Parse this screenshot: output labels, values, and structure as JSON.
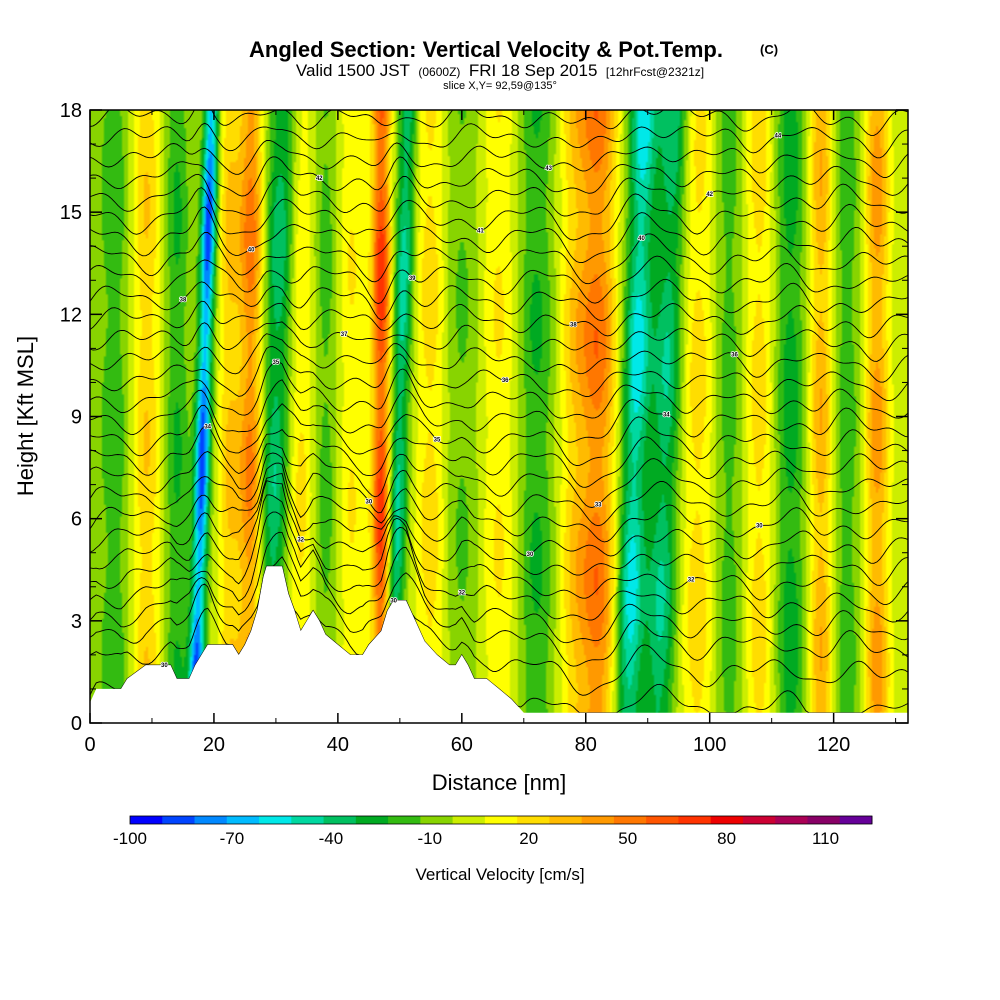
{
  "chart_data": {
    "type": "heatmap",
    "title": "Angled Section: Vertical Velocity & Pot.Temp.",
    "title_units": "(C)",
    "subtitle": {
      "valid_label": "Valid 1500 JST",
      "utc_time": "(0600Z)",
      "date_label": "FRI 18 Sep 2015",
      "forecast": "[12hrFcst@2321z]"
    },
    "slice_label": "slice X,Y= 92,59@135°",
    "xlabel": "Distance [nm]",
    "ylabel": "Height [Kft MSL]",
    "xlim": [
      0,
      132
    ],
    "ylim": [
      0,
      18
    ],
    "x_ticks": [
      "0",
      "20",
      "40",
      "60",
      "80",
      "100",
      "120"
    ],
    "y_ticks": [
      "0",
      "3",
      "6",
      "9",
      "12",
      "15",
      "18"
    ],
    "x_tick_values": [
      0,
      20,
      40,
      60,
      80,
      100,
      120
    ],
    "y_tick_values": [
      0,
      3,
      6,
      9,
      12,
      15,
      18
    ],
    "colorbar": {
      "label": "Vertical Velocity [cm/s]",
      "tick_labels": [
        "-100",
        "-70",
        "-40",
        "-10",
        "20",
        "50",
        "80",
        "110"
      ],
      "tick_values": [
        -100,
        -70,
        -40,
        -10,
        20,
        50,
        80,
        110
      ],
      "range": [
        -100,
        125
      ],
      "colors": [
        "#0000ff",
        "#0044ff",
        "#0088ff",
        "#00bbff",
        "#00e8e8",
        "#00d8a0",
        "#00c060",
        "#00aa22",
        "#33bb11",
        "#88d400",
        "#ccee00",
        "#ffff00",
        "#ffdd00",
        "#ffbb00",
        "#ff9900",
        "#ff7700",
        "#ff5500",
        "#ff3300",
        "#ee0000",
        "#cc0033",
        "#aa0055",
        "#880066",
        "#660099"
      ]
    },
    "velocity_features": [
      {
        "x": 4,
        "w": 3,
        "v": -20
      },
      {
        "x": 9,
        "w": 2.5,
        "v": 30
      },
      {
        "x": 14,
        "w": 2,
        "v": -25
      },
      {
        "x": 18.3,
        "w": 1.2,
        "v": -90
      },
      {
        "x": 22.5,
        "w": 1.8,
        "v": 30
      },
      {
        "x": 26,
        "w": 2,
        "v": 55
      },
      {
        "x": 30,
        "w": 2.5,
        "v": -45
      },
      {
        "x": 34,
        "w": 2.5,
        "v": 25
      },
      {
        "x": 38,
        "w": 2.5,
        "v": -20
      },
      {
        "x": 42,
        "w": 2.5,
        "v": 20
      },
      {
        "x": 47,
        "w": 1.5,
        "v": 75
      },
      {
        "x": 50,
        "w": 1.5,
        "v": -50
      },
      {
        "x": 55,
        "w": 2.5,
        "v": 25
      },
      {
        "x": 60,
        "w": 3,
        "v": -15
      },
      {
        "x": 66,
        "w": 3,
        "v": 20
      },
      {
        "x": 72,
        "w": 3,
        "v": -25
      },
      {
        "x": 78,
        "w": 2.5,
        "v": 25
      },
      {
        "x": 82,
        "w": 3,
        "v": 55
      },
      {
        "x": 88,
        "w": 2.2,
        "v": -60
      },
      {
        "x": 93,
        "w": 2.5,
        "v": -45
      },
      {
        "x": 98,
        "w": 3,
        "v": 25
      },
      {
        "x": 103,
        "w": 2.5,
        "v": -20
      },
      {
        "x": 108,
        "w": 2.5,
        "v": 25
      },
      {
        "x": 113,
        "w": 2.5,
        "v": -30
      },
      {
        "x": 118,
        "w": 2,
        "v": 40
      },
      {
        "x": 122,
        "w": 2.5,
        "v": -20
      },
      {
        "x": 127,
        "w": 2,
        "v": 45
      }
    ],
    "terrain": [
      [
        0,
        0.6
      ],
      [
        1,
        1.0
      ],
      [
        5,
        1.0
      ],
      [
        6,
        1.3
      ],
      [
        9,
        1.7
      ],
      [
        13,
        1.7
      ],
      [
        14,
        1.3
      ],
      [
        16,
        1.3
      ],
      [
        17,
        1.7
      ],
      [
        18,
        2.0
      ],
      [
        19,
        2.3
      ],
      [
        23,
        2.3
      ],
      [
        24,
        2.0
      ],
      [
        25,
        2.3
      ],
      [
        26,
        2.7
      ],
      [
        27,
        3.3
      ],
      [
        28,
        4.3
      ],
      [
        28.5,
        4.6
      ],
      [
        31,
        4.6
      ],
      [
        32,
        3.8
      ],
      [
        33,
        3.3
      ],
      [
        34,
        2.7
      ],
      [
        35,
        3.0
      ],
      [
        36,
        3.3
      ],
      [
        37,
        3.0
      ],
      [
        38,
        2.6
      ],
      [
        40,
        2.3
      ],
      [
        42,
        2.0
      ],
      [
        44,
        2.0
      ],
      [
        45,
        2.3
      ],
      [
        47,
        2.7
      ],
      [
        48,
        3.3
      ],
      [
        49,
        3.6
      ],
      [
        51,
        3.6
      ],
      [
        52,
        3.2
      ],
      [
        53,
        2.8
      ],
      [
        54,
        2.4
      ],
      [
        56,
        2.0
      ],
      [
        58,
        1.7
      ],
      [
        59,
        1.7
      ],
      [
        60,
        2.0
      ],
      [
        61,
        1.7
      ],
      [
        62,
        1.3
      ],
      [
        64,
        1.3
      ],
      [
        66,
        1.0
      ],
      [
        68,
        0.7
      ],
      [
        70,
        0.3
      ],
      [
        132,
        0.3
      ]
    ],
    "theta_contours": [
      {
        "z0": 0.3,
        "label": "30"
      },
      {
        "z0": 1.4,
        "label": "30"
      },
      {
        "z0": 2.2,
        "label": ""
      },
      {
        "z0": 2.8,
        "label": ""
      },
      {
        "z0": 3.4,
        "label": "32"
      },
      {
        "z0": 4.0,
        "label": "32"
      },
      {
        "z0": 4.6,
        "label": "32"
      },
      {
        "z0": 5.2,
        "label": "30"
      },
      {
        "z0": 5.8,
        "label": "30"
      },
      {
        "z0": 6.4,
        "label": "30"
      },
      {
        "z0": 7.0,
        "label": "33"
      },
      {
        "z0": 7.6,
        "label": "34"
      },
      {
        "z0": 8.2,
        "label": "35"
      },
      {
        "z0": 8.8,
        "label": "34"
      },
      {
        "z0": 9.4,
        "label": "35"
      },
      {
        "z0": 10.0,
        "label": "36"
      },
      {
        "z0": 10.6,
        "label": "36"
      },
      {
        "z0": 11.2,
        "label": "37"
      },
      {
        "z0": 11.8,
        "label": "38"
      },
      {
        "z0": 12.4,
        "label": "38"
      },
      {
        "z0": 13.0,
        "label": "39"
      },
      {
        "z0": 13.6,
        "label": "40"
      },
      {
        "z0": 14.2,
        "label": "40"
      },
      {
        "z0": 14.8,
        "label": "41"
      },
      {
        "z0": 15.4,
        "label": "42"
      },
      {
        "z0": 16.0,
        "label": "42"
      },
      {
        "z0": 16.6,
        "label": "43"
      },
      {
        "z0": 17.2,
        "label": "44"
      },
      {
        "z0": 17.8,
        "label": ""
      }
    ]
  }
}
